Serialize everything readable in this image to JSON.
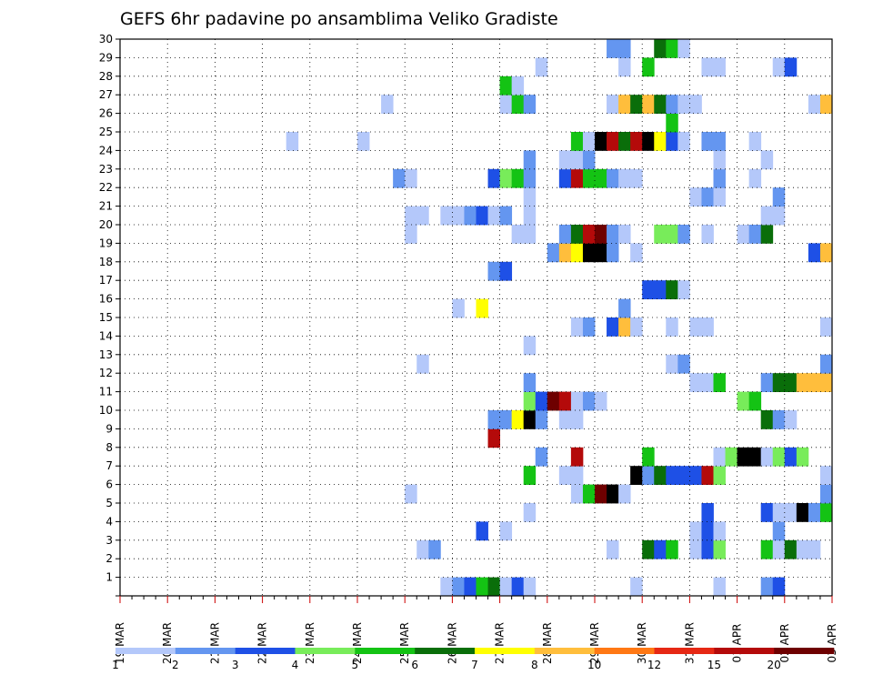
{
  "chart_data": {
    "type": "heatmap",
    "title": "GEFS 6hr padavine po ansamblima Veliko Gradiste",
    "xlabel": "",
    "ylabel": "",
    "x_ticks": [
      "19 MAR",
      "20 MAR",
      "21 MAR",
      "22 MAR",
      "23 MAR",
      "24 MAR",
      "25 MAR",
      "26 MAR",
      "27 MAR",
      "28 MAR",
      "29 MAR",
      "30 MAR",
      "31 MAR",
      "01 APR",
      "02 APR",
      "03 APR"
    ],
    "y_ticks": [
      "1",
      "2",
      "3",
      "4",
      "5",
      "6",
      "7",
      "8",
      "9",
      "10",
      "11",
      "12",
      "13",
      "14",
      "15",
      "16",
      "17",
      "18",
      "19",
      "20",
      "21",
      "22",
      "23",
      "24",
      "25",
      "26",
      "27",
      "28",
      "29",
      "30"
    ],
    "xlim_steps": [
      0,
      60
    ],
    "x_step_hours": 6,
    "ylim": [
      0,
      30
    ],
    "grid": true,
    "colorbar": {
      "labels": [
        "1",
        "2",
        "3",
        "4",
        "5",
        "6",
        "7",
        "8",
        "10",
        "12",
        "15",
        "20"
      ],
      "colors": [
        "#b4c8fa",
        "#6496f0",
        "#1e50e6",
        "#78ec5a",
        "#14c314",
        "#0a6e0a",
        "#ffff00",
        "#ffbe3c",
        "#ff7814",
        "#e62814",
        "#b40a0a",
        "#6e0000"
      ]
    },
    "cells": [
      [
        28,
        1,
        1
      ],
      [
        29,
        1,
        2
      ],
      [
        30,
        1,
        3
      ],
      [
        31,
        1,
        5
      ],
      [
        32,
        1,
        6
      ],
      [
        33,
        1,
        1
      ],
      [
        34,
        1,
        3
      ],
      [
        35,
        1,
        1
      ],
      [
        44,
        1,
        1
      ],
      [
        51,
        1,
        1
      ],
      [
        55,
        1,
        2
      ],
      [
        56,
        1,
        3
      ],
      [
        26,
        3,
        1
      ],
      [
        27,
        3,
        2
      ],
      [
        42,
        3,
        1
      ],
      [
        45,
        3,
        6
      ],
      [
        46,
        3,
        3
      ],
      [
        47,
        3,
        5
      ],
      [
        49,
        3,
        1
      ],
      [
        50,
        3,
        3
      ],
      [
        51,
        3,
        4
      ],
      [
        55,
        3,
        5
      ],
      [
        56,
        3,
        1
      ],
      [
        57,
        3,
        6
      ],
      [
        58,
        3,
        1
      ],
      [
        59,
        3,
        1
      ],
      [
        31,
        4,
        3
      ],
      [
        33,
        4,
        1
      ],
      [
        49,
        4,
        1
      ],
      [
        50,
        4,
        3
      ],
      [
        51,
        4,
        1
      ],
      [
        56,
        4,
        2
      ],
      [
        35,
        5,
        1
      ],
      [
        50,
        5,
        3
      ],
      [
        55,
        5,
        3
      ],
      [
        56,
        5,
        1
      ],
      [
        57,
        5,
        1
      ],
      [
        58,
        5,
        14
      ],
      [
        59,
        5,
        2
      ],
      [
        60,
        5,
        5
      ],
      [
        25,
        6,
        1
      ],
      [
        39,
        6,
        1
      ],
      [
        40,
        6,
        5
      ],
      [
        41,
        6,
        12
      ],
      [
        42,
        6,
        13
      ],
      [
        43,
        6,
        1
      ],
      [
        60,
        6,
        2
      ],
      [
        35,
        7,
        5
      ],
      [
        38,
        7,
        1
      ],
      [
        39,
        7,
        1
      ],
      [
        44,
        7,
        13
      ],
      [
        45,
        7,
        2
      ],
      [
        46,
        7,
        6
      ],
      [
        47,
        7,
        3
      ],
      [
        48,
        7,
        3
      ],
      [
        49,
        7,
        3
      ],
      [
        50,
        7,
        11
      ],
      [
        51,
        7,
        4
      ],
      [
        60,
        7,
        1
      ],
      [
        36,
        8,
        2
      ],
      [
        39,
        8,
        11
      ],
      [
        45,
        8,
        5
      ],
      [
        51,
        8,
        1
      ],
      [
        52,
        8,
        4
      ],
      [
        53,
        8,
        13
      ],
      [
        54,
        8,
        14
      ],
      [
        55,
        8,
        1
      ],
      [
        56,
        8,
        4
      ],
      [
        57,
        8,
        3
      ],
      [
        58,
        8,
        4
      ],
      [
        32,
        9,
        11
      ],
      [
        32,
        10,
        2
      ],
      [
        33,
        10,
        2
      ],
      [
        34,
        10,
        7
      ],
      [
        35,
        10,
        13
      ],
      [
        36,
        10,
        2
      ],
      [
        38,
        10,
        1
      ],
      [
        39,
        10,
        1
      ],
      [
        55,
        10,
        6
      ],
      [
        56,
        10,
        2
      ],
      [
        57,
        10,
        1
      ],
      [
        35,
        11,
        4
      ],
      [
        36,
        11,
        3
      ],
      [
        37,
        11,
        12
      ],
      [
        38,
        11,
        11
      ],
      [
        39,
        11,
        1
      ],
      [
        40,
        11,
        2
      ],
      [
        41,
        11,
        1
      ],
      [
        53,
        11,
        4
      ],
      [
        54,
        11,
        5
      ],
      [
        35,
        12,
        2
      ],
      [
        49,
        12,
        1
      ],
      [
        50,
        12,
        1
      ],
      [
        51,
        12,
        5
      ],
      [
        55,
        12,
        2
      ],
      [
        56,
        12,
        6
      ],
      [
        57,
        12,
        6
      ],
      [
        58,
        12,
        8
      ],
      [
        59,
        12,
        8
      ],
      [
        60,
        12,
        8
      ],
      [
        26,
        13,
        1
      ],
      [
        47,
        13,
        1
      ],
      [
        48,
        13,
        2
      ],
      [
        60,
        13,
        2
      ],
      [
        35,
        14,
        1
      ],
      [
        39,
        15,
        1
      ],
      [
        40,
        15,
        2
      ],
      [
        42,
        15,
        3
      ],
      [
        43,
        15,
        8
      ],
      [
        44,
        15,
        1
      ],
      [
        47,
        15,
        1
      ],
      [
        49,
        15,
        1
      ],
      [
        50,
        15,
        1
      ],
      [
        60,
        15,
        1
      ],
      [
        29,
        16,
        1
      ],
      [
        31,
        16,
        7
      ],
      [
        43,
        16,
        2
      ],
      [
        45,
        17,
        3
      ],
      [
        46,
        17,
        3
      ],
      [
        47,
        17,
        6
      ],
      [
        48,
        17,
        1
      ],
      [
        32,
        18,
        2
      ],
      [
        33,
        18,
        3
      ],
      [
        37,
        19,
        2
      ],
      [
        38,
        19,
        8
      ],
      [
        39,
        19,
        7
      ],
      [
        40,
        19,
        13
      ],
      [
        41,
        19,
        14
      ],
      [
        42,
        19,
        2
      ],
      [
        44,
        19,
        1
      ],
      [
        59,
        19,
        3
      ],
      [
        60,
        19,
        8
      ],
      [
        25,
        20,
        1
      ],
      [
        34,
        20,
        1
      ],
      [
        35,
        20,
        1
      ],
      [
        38,
        20,
        2
      ],
      [
        39,
        20,
        6
      ],
      [
        40,
        20,
        11
      ],
      [
        41,
        20,
        12
      ],
      [
        42,
        20,
        2
      ],
      [
        43,
        20,
        1
      ],
      [
        46,
        20,
        4
      ],
      [
        47,
        20,
        4
      ],
      [
        48,
        20,
        2
      ],
      [
        50,
        20,
        1
      ],
      [
        53,
        20,
        1
      ],
      [
        54,
        20,
        2
      ],
      [
        55,
        20,
        6
      ],
      [
        25,
        21,
        1
      ],
      [
        26,
        21,
        1
      ],
      [
        28,
        21,
        1
      ],
      [
        29,
        21,
        1
      ],
      [
        30,
        21,
        2
      ],
      [
        31,
        21,
        3
      ],
      [
        32,
        21,
        1
      ],
      [
        33,
        21,
        2
      ],
      [
        35,
        21,
        1
      ],
      [
        55,
        21,
        1
      ],
      [
        56,
        21,
        1
      ],
      [
        35,
        22,
        1
      ],
      [
        49,
        22,
        1
      ],
      [
        50,
        22,
        2
      ],
      [
        51,
        22,
        1
      ],
      [
        56,
        22,
        2
      ],
      [
        24,
        23,
        2
      ],
      [
        25,
        23,
        1
      ],
      [
        32,
        23,
        3
      ],
      [
        33,
        23,
        4
      ],
      [
        34,
        23,
        5
      ],
      [
        35,
        23,
        2
      ],
      [
        38,
        23,
        3
      ],
      [
        39,
        23,
        11
      ],
      [
        40,
        23,
        5
      ],
      [
        41,
        23,
        5
      ],
      [
        42,
        23,
        2
      ],
      [
        43,
        23,
        1
      ],
      [
        44,
        23,
        1
      ],
      [
        51,
        23,
        2
      ],
      [
        54,
        23,
        1
      ],
      [
        35,
        24,
        2
      ],
      [
        38,
        24,
        1
      ],
      [
        39,
        24,
        1
      ],
      [
        40,
        24,
        2
      ],
      [
        51,
        24,
        1
      ],
      [
        55,
        24,
        1
      ],
      [
        15,
        25,
        1
      ],
      [
        21,
        25,
        1
      ],
      [
        39,
        25,
        5
      ],
      [
        40,
        25,
        1
      ],
      [
        41,
        25,
        14
      ],
      [
        42,
        25,
        11
      ],
      [
        43,
        25,
        6
      ],
      [
        44,
        25,
        11
      ],
      [
        45,
        25,
        13
      ],
      [
        46,
        25,
        7
      ],
      [
        47,
        25,
        3
      ],
      [
        48,
        25,
        1
      ],
      [
        50,
        25,
        2
      ],
      [
        51,
        25,
        2
      ],
      [
        54,
        25,
        1
      ],
      [
        47,
        26,
        5
      ],
      [
        23,
        27,
        1
      ],
      [
        33,
        27,
        1
      ],
      [
        34,
        27,
        5
      ],
      [
        35,
        27,
        2
      ],
      [
        42,
        27,
        1
      ],
      [
        43,
        27,
        8
      ],
      [
        44,
        27,
        6
      ],
      [
        45,
        27,
        8
      ],
      [
        46,
        27,
        6
      ],
      [
        47,
        27,
        2
      ],
      [
        48,
        27,
        1
      ],
      [
        49,
        27,
        1
      ],
      [
        59,
        27,
        1
      ],
      [
        60,
        27,
        8
      ],
      [
        33,
        28,
        5
      ],
      [
        34,
        28,
        1
      ],
      [
        36,
        29,
        1
      ],
      [
        43,
        29,
        1
      ],
      [
        45,
        29,
        5
      ],
      [
        50,
        29,
        1
      ],
      [
        51,
        29,
        1
      ],
      [
        56,
        29,
        1
      ],
      [
        57,
        29,
        3
      ],
      [
        42,
        30,
        2
      ],
      [
        43,
        30,
        2
      ],
      [
        46,
        30,
        6
      ],
      [
        47,
        30,
        5
      ],
      [
        48,
        30,
        1
      ]
    ]
  }
}
